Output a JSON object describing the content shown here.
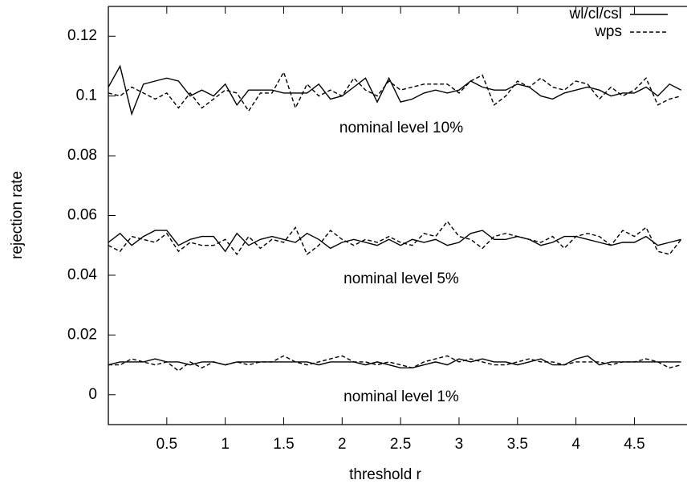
{
  "chart_data": {
    "type": "line",
    "xlabel": "threshold r",
    "ylabel": "rejection rate",
    "x": [
      0,
      0.1,
      0.2,
      0.3,
      0.4,
      0.5,
      0.6,
      0.7,
      0.8,
      0.9,
      1,
      1.1,
      1.2,
      1.3,
      1.4,
      1.5,
      1.6,
      1.7,
      1.8,
      1.9,
      2,
      2.1,
      2.2,
      2.3,
      2.4,
      2.5,
      2.6,
      2.7,
      2.8,
      2.9,
      3,
      3.1,
      3.2,
      3.3,
      3.4,
      3.5,
      3.6,
      3.7,
      3.8,
      3.9,
      4,
      4.1,
      4.2,
      4.3,
      4.4,
      4.5,
      4.6,
      4.7,
      4.8,
      4.9
    ],
    "xlim": [
      0,
      4.95
    ],
    "xticks": [
      0.5,
      1,
      1.5,
      2,
      2.5,
      3,
      3.5,
      4,
      4.5
    ],
    "ylim": [
      -0.01,
      0.13
    ],
    "yticks": [
      0,
      0.02,
      0.04,
      0.06,
      0.08,
      0.1,
      0.12
    ],
    "annotations": [
      "nominal level 10%",
      "nominal level 5%",
      "nominal level 1%"
    ],
    "legend": "top-right",
    "series": [
      {
        "name": "wl/cl/csl",
        "color": "#000000",
        "dash": "none",
        "levels": [
          [
            0.103,
            0.11,
            0.094,
            0.104,
            0.105,
            0.106,
            0.105,
            0.1,
            0.102,
            0.1,
            0.104,
            0.097,
            0.102,
            0.102,
            0.102,
            0.101,
            0.101,
            0.101,
            0.104,
            0.099,
            0.1,
            0.103,
            0.106,
            0.098,
            0.106,
            0.098,
            0.099,
            0.101,
            0.102,
            0.101,
            0.102,
            0.105,
            0.103,
            0.102,
            0.102,
            0.104,
            0.103,
            0.1,
            0.099,
            0.101,
            0.102,
            0.103,
            0.102,
            0.1,
            0.101,
            0.101,
            0.103,
            0.1,
            0.104,
            0.102
          ],
          [
            0.051,
            0.054,
            0.05,
            0.053,
            0.055,
            0.055,
            0.05,
            0.052,
            0.053,
            0.053,
            0.048,
            0.054,
            0.05,
            0.052,
            0.053,
            0.052,
            0.051,
            0.054,
            0.052,
            0.049,
            0.051,
            0.052,
            0.051,
            0.05,
            0.052,
            0.05,
            0.052,
            0.051,
            0.052,
            0.05,
            0.051,
            0.054,
            0.055,
            0.052,
            0.052,
            0.053,
            0.052,
            0.05,
            0.051,
            0.053,
            0.053,
            0.052,
            0.051,
            0.05,
            0.051,
            0.051,
            0.053,
            0.05,
            0.051,
            0.052
          ],
          [
            0.01,
            0.011,
            0.011,
            0.011,
            0.012,
            0.011,
            0.011,
            0.01,
            0.011,
            0.011,
            0.01,
            0.011,
            0.011,
            0.011,
            0.011,
            0.011,
            0.011,
            0.011,
            0.01,
            0.011,
            0.011,
            0.011,
            0.01,
            0.011,
            0.01,
            0.009,
            0.009,
            0.01,
            0.011,
            0.01,
            0.012,
            0.011,
            0.012,
            0.011,
            0.011,
            0.01,
            0.011,
            0.012,
            0.01,
            0.01,
            0.012,
            0.013,
            0.01,
            0.011,
            0.011,
            0.011,
            0.011,
            0.011,
            0.011,
            0.011
          ]
        ]
      },
      {
        "name": "wps",
        "color": "#000000",
        "dash": "5 3",
        "levels": [
          [
            0.101,
            0.1,
            0.103,
            0.101,
            0.099,
            0.101,
            0.096,
            0.101,
            0.096,
            0.099,
            0.102,
            0.101,
            0.095,
            0.101,
            0.101,
            0.108,
            0.096,
            0.104,
            0.1,
            0.102,
            0.1,
            0.106,
            0.102,
            0.1,
            0.105,
            0.102,
            0.103,
            0.104,
            0.104,
            0.104,
            0.101,
            0.105,
            0.107,
            0.097,
            0.1,
            0.105,
            0.103,
            0.106,
            0.103,
            0.102,
            0.105,
            0.104,
            0.099,
            0.103,
            0.1,
            0.102,
            0.106,
            0.097,
            0.099,
            0.1
          ],
          [
            0.05,
            0.048,
            0.053,
            0.052,
            0.051,
            0.054,
            0.048,
            0.051,
            0.05,
            0.05,
            0.052,
            0.047,
            0.053,
            0.049,
            0.052,
            0.051,
            0.056,
            0.047,
            0.05,
            0.055,
            0.052,
            0.05,
            0.052,
            0.051,
            0.053,
            0.051,
            0.05,
            0.054,
            0.053,
            0.058,
            0.053,
            0.052,
            0.049,
            0.053,
            0.054,
            0.053,
            0.052,
            0.051,
            0.053,
            0.049,
            0.053,
            0.054,
            0.053,
            0.05,
            0.055,
            0.053,
            0.056,
            0.048,
            0.047,
            0.052
          ],
          [
            0.01,
            0.01,
            0.012,
            0.011,
            0.01,
            0.011,
            0.008,
            0.011,
            0.009,
            0.011,
            0.01,
            0.011,
            0.01,
            0.011,
            0.011,
            0.013,
            0.011,
            0.01,
            0.011,
            0.012,
            0.013,
            0.011,
            0.011,
            0.01,
            0.011,
            0.01,
            0.009,
            0.011,
            0.012,
            0.013,
            0.011,
            0.012,
            0.011,
            0.01,
            0.01,
            0.011,
            0.012,
            0.011,
            0.011,
            0.01,
            0.011,
            0.011,
            0.011,
            0.01,
            0.011,
            0.011,
            0.012,
            0.011,
            0.009,
            0.01
          ]
        ]
      }
    ]
  }
}
